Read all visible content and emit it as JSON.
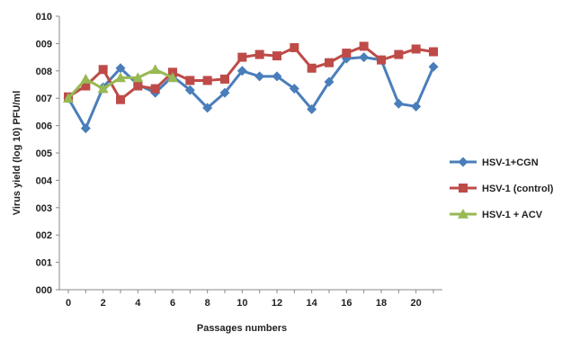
{
  "chart_data": {
    "type": "line",
    "title": "",
    "xlabel": "Passages numbers",
    "ylabel": "Virus yield (log 10) PFU/ml",
    "xlim": [
      0,
      21
    ],
    "ylim": [
      0,
      10
    ],
    "x_ticks": [
      "0",
      "2",
      "4",
      "6",
      "8",
      "10",
      "12",
      "14",
      "16",
      "18",
      "20"
    ],
    "y_ticks": [
      "000",
      "001",
      "002",
      "003",
      "004",
      "005",
      "006",
      "007",
      "008",
      "009",
      "010"
    ],
    "grid": false,
    "legend_position": "right",
    "series": [
      {
        "name": "HSV-1+CGN",
        "color": "#4a7ebb",
        "marker": "diamond",
        "x": [
          0,
          1,
          2,
          3,
          4,
          5,
          6,
          7,
          8,
          9,
          10,
          11,
          12,
          13,
          14,
          15,
          16,
          17,
          18,
          19,
          20,
          21
        ],
        "values": [
          7.0,
          5.9,
          7.4,
          8.1,
          7.5,
          7.2,
          7.8,
          7.3,
          6.65,
          7.2,
          8.0,
          7.8,
          7.8,
          7.35,
          6.6,
          7.6,
          8.45,
          8.5,
          8.4,
          6.8,
          6.7,
          8.15
        ]
      },
      {
        "name": "HSV-1 (control)",
        "color": "#be4b48",
        "marker": "square",
        "x": [
          0,
          1,
          2,
          3,
          4,
          5,
          6,
          7,
          8,
          9,
          10,
          11,
          12,
          13,
          14,
          15,
          16,
          17,
          18,
          19,
          20,
          21
        ],
        "values": [
          7.05,
          7.45,
          8.05,
          6.95,
          7.45,
          7.35,
          7.95,
          7.65,
          7.65,
          7.7,
          8.5,
          8.6,
          8.55,
          8.85,
          8.1,
          8.3,
          8.65,
          8.9,
          8.4,
          8.6,
          8.8,
          8.7
        ]
      },
      {
        "name": "HSV-1 + ACV",
        "color": "#98b954",
        "marker": "triangle",
        "x": [
          0,
          1,
          2,
          3,
          4,
          5,
          6
        ],
        "values": [
          7.0,
          7.7,
          7.35,
          7.75,
          7.75,
          8.05,
          7.75
        ]
      }
    ]
  }
}
